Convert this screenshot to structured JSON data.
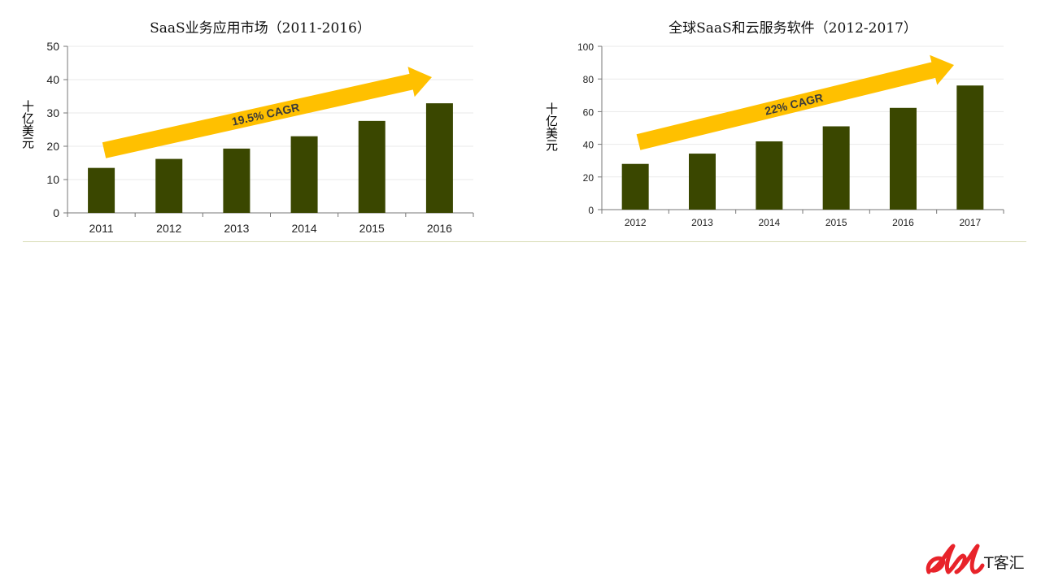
{
  "chart_data": [
    {
      "type": "bar",
      "title": "SaaS业务应用市场（2011-2016）",
      "ylabel": "十亿美元",
      "xlabel": "",
      "categories": [
        "2011",
        "2012",
        "2013",
        "2014",
        "2015",
        "2016"
      ],
      "values": [
        13.5,
        16.2,
        19.3,
        23.0,
        27.6,
        32.9
      ],
      "ylim": [
        0,
        50
      ],
      "yticks": [
        0,
        10,
        20,
        30,
        40,
        50
      ],
      "annotation": "19.5% CAGR",
      "bar_color": "#3a4700",
      "arrow_color": "#ffc000",
      "grid": true
    },
    {
      "type": "bar",
      "title": "全球SaaS和云服务软件（2012-2017）",
      "ylabel": "十亿美元",
      "xlabel": "",
      "categories": [
        "2012",
        "2013",
        "2014",
        "2015",
        "2016",
        "2017"
      ],
      "values": [
        28,
        34.3,
        41.8,
        51,
        62.3,
        76
      ],
      "ylim": [
        0,
        100
      ],
      "yticks": [
        0,
        20,
        40,
        60,
        80,
        100
      ],
      "annotation": "22% CAGR",
      "bar_color": "#3a4700",
      "arrow_color": "#ffc000",
      "grid": true
    }
  ],
  "logo": {
    "text": "T客汇",
    "color": "#e8232a"
  }
}
